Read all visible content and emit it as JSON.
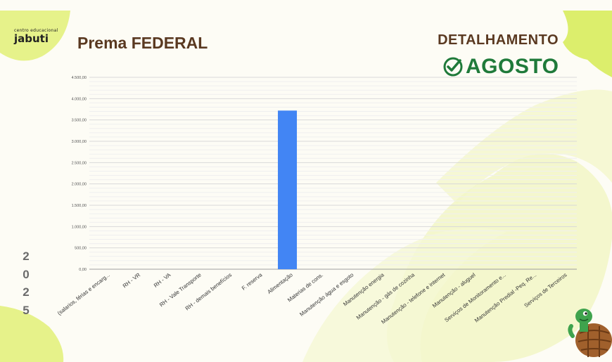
{
  "header": {
    "logo_small": "centro educacional",
    "logo_big": "jabuti",
    "title": "Prema FEDERAL",
    "detail_label": "DETALHAMENTO",
    "month": "AGOSTO"
  },
  "year_digits": [
    "2",
    "0",
    "2",
    "5"
  ],
  "icons": [
    "check-circle-icon",
    "turtle-mascot-icon",
    "leaf-decoration-icon"
  ],
  "colors": {
    "bar": "#4285f4",
    "title": "#5a3921",
    "month": "#1f7a3a",
    "leaf": "#e6f28a"
  },
  "chart_data": {
    "type": "bar",
    "title": "",
    "xlabel": "",
    "ylabel": "",
    "ylim": [
      0,
      4500
    ],
    "yticks": [
      0,
      500,
      1000,
      1500,
      2000,
      2500,
      3000,
      3500,
      4000,
      4500
    ],
    "ytick_labels": [
      "0,00",
      "500,00",
      "1.000,00",
      "1.500,00",
      "2.000,00",
      "2.500,00",
      "3.000,00",
      "3.500,00",
      "4.000,00",
      "4.500,00"
    ],
    "categories": [
      "(salarios, férias e encarg...",
      "RH - VR",
      "RH - VA",
      "RH - Vale Transporte",
      "RH - demais benefícios",
      "F. reserva",
      "Alimentação",
      "Materias de cons.",
      "Manutenção água e esgoto",
      "Manutenção energia",
      "Manutenção - gás de cozinha",
      "Manutenção - telefone e internet",
      "Manutenção - aluguel",
      "Serviços de Monitoramento e...",
      "Manutenção Predial -Peq. Re...",
      "Serviços de Terceiros"
    ],
    "values": [
      0,
      0,
      0,
      0,
      0,
      0,
      3720,
      0,
      0,
      0,
      0,
      0,
      0,
      0,
      0,
      0
    ],
    "grid": true
  }
}
